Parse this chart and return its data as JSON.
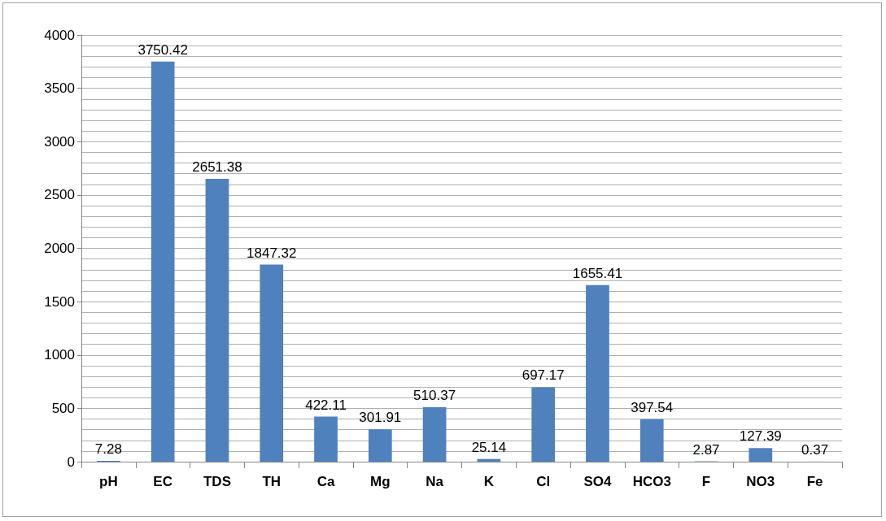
{
  "chart_data": {
    "type": "bar",
    "categories": [
      "pH",
      "EC",
      "TDS",
      "TH",
      "Ca",
      "Mg",
      "Na",
      "K",
      "Cl",
      "SO4",
      "HCO3",
      "F",
      "NO3",
      "Fe"
    ],
    "values": [
      7.28,
      3750.42,
      2651.38,
      1847.32,
      422.11,
      301.91,
      510.37,
      25.14,
      697.17,
      1655.41,
      397.54,
      2.87,
      127.39,
      0.37
    ],
    "color": "#4f81bd",
    "data_labels": true,
    "ylim": [
      0,
      4000
    ],
    "yticks": [
      0,
      {
        "value": 100,
        "label": null
      },
      {
        "value": 200,
        "label": null
      },
      {
        "value": 300,
        "label": null
      },
      {
        "value": 400,
        "label": null
      },
      500,
      {
        "value": 600,
        "label": null
      },
      {
        "value": 700,
        "label": null
      },
      {
        "value": 800,
        "label": null
      },
      {
        "value": 900,
        "label": null
      },
      1000,
      {
        "value": 1100,
        "label": null
      },
      {
        "value": 1200,
        "label": null
      },
      {
        "value": 1300,
        "label": null
      },
      {
        "value": 1400,
        "label": null
      },
      1500,
      {
        "value": 1600,
        "label": null
      },
      {
        "value": 1700,
        "label": null
      },
      {
        "value": 1800,
        "label": null
      },
      {
        "value": 1900,
        "label": null
      },
      2000,
      {
        "value": 2100,
        "label": null
      },
      {
        "value": 2200,
        "label": null
      },
      {
        "value": 2300,
        "label": null
      },
      {
        "value": 2400,
        "label": null
      },
      2500,
      {
        "value": 2600,
        "label": null
      },
      {
        "value": 2700,
        "label": null
      },
      {
        "value": 2800,
        "label": null
      },
      {
        "value": 2900,
        "label": null
      },
      3000,
      {
        "value": 3100,
        "label": null
      },
      {
        "value": 3200,
        "label": null
      },
      {
        "value": 3300,
        "label": null
      },
      {
        "value": 3400,
        "label": null
      },
      3500,
      {
        "value": 3600,
        "label": null
      },
      {
        "value": 3700,
        "label": null
      },
      {
        "value": 3800,
        "label": null
      },
      {
        "value": 3900,
        "label": null
      },
      4000
    ],
    "grid": "y"
  }
}
